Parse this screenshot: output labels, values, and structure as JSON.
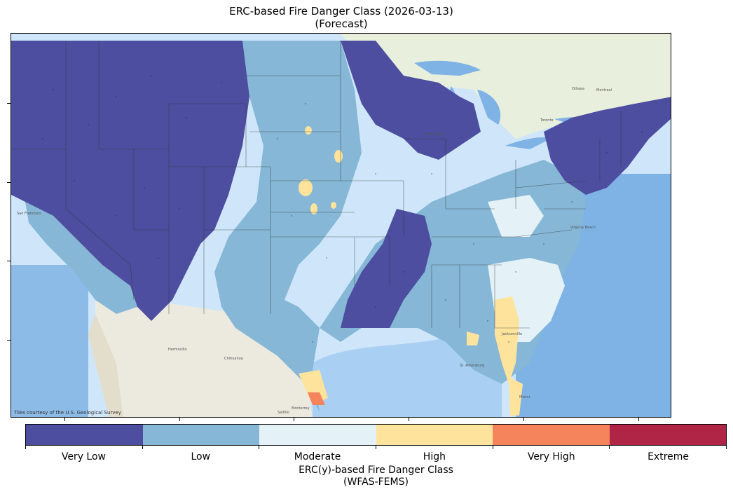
{
  "title": {
    "line1": "ERC-based Fire Danger Class (2026-03-13)",
    "line2": "(Forecast)"
  },
  "map": {
    "attribution": "Tiles courtesy of the U.S. Geological Survey",
    "basemap": "USGS topo/terrain",
    "region": "Contiguous United States"
  },
  "colorbar": {
    "title_line1": "ERC(y)-based Fire Danger Class",
    "title_line2": "(WFAS-FEMS)",
    "classes": [
      {
        "label": "Very Low",
        "color": "#4d4ea0"
      },
      {
        "label": "Low",
        "color": "#86b7d6"
      },
      {
        "label": "Moderate",
        "color": "#e4f2f7"
      },
      {
        "label": "High",
        "color": "#fde39c"
      },
      {
        "label": "Very High",
        "color": "#f5845d"
      },
      {
        "label": "Extreme",
        "color": "#b02545"
      }
    ]
  }
}
